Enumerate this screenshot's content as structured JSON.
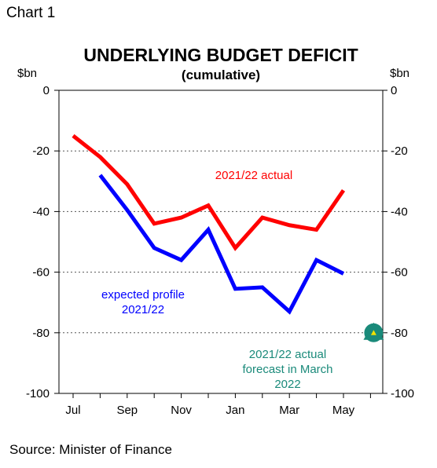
{
  "chart_label": "Chart 1",
  "source": "Source: Minister of Finance",
  "chart_data": {
    "type": "line",
    "title": "UNDERLYING BUDGET DEFICIT",
    "subtitle": "(cumulative)",
    "y_unit_left": "$bn",
    "y_unit_right": "$bn",
    "ylim": [
      -100,
      0
    ],
    "yticks": [
      0,
      -20,
      -40,
      -60,
      -80,
      -100
    ],
    "grid_lines": [
      -20,
      -40,
      -60,
      -80
    ],
    "categories": [
      "Jul",
      "Aug",
      "Sep",
      "Oct",
      "Nov",
      "Dec",
      "Jan",
      "Feb",
      "Mar",
      "Apr",
      "May",
      "Jun"
    ],
    "x_tick_labels": [
      "Jul",
      "Sep",
      "Nov",
      "Jan",
      "Mar",
      "May"
    ],
    "series": [
      {
        "name": "2021/22 actual",
        "color": "#ff0000",
        "values": [
          -15,
          -22,
          -31,
          -44,
          -42,
          -38,
          -52,
          -42,
          -44.5,
          -46,
          -33,
          null
        ]
      },
      {
        "name": "expected profile 2021/22",
        "color": "#0000ff",
        "values": [
          null,
          -28,
          -39.5,
          -52,
          -56,
          -46,
          -65.5,
          -65,
          -73,
          -56,
          -60.5,
          null
        ]
      }
    ],
    "marker": {
      "name": "2021/22 actual forecast in March 2022",
      "category": "Jun",
      "value": -80,
      "color": "#1a8a7a",
      "shape": "triangle-in-circle"
    },
    "annotations": {
      "actual": "2021/22 actual",
      "expected_line1": "expected profile",
      "expected_line2": "2021/22",
      "forecast_line1": "2021/22 actual",
      "forecast_line2": "forecast in March",
      "forecast_line3": "2022"
    }
  }
}
